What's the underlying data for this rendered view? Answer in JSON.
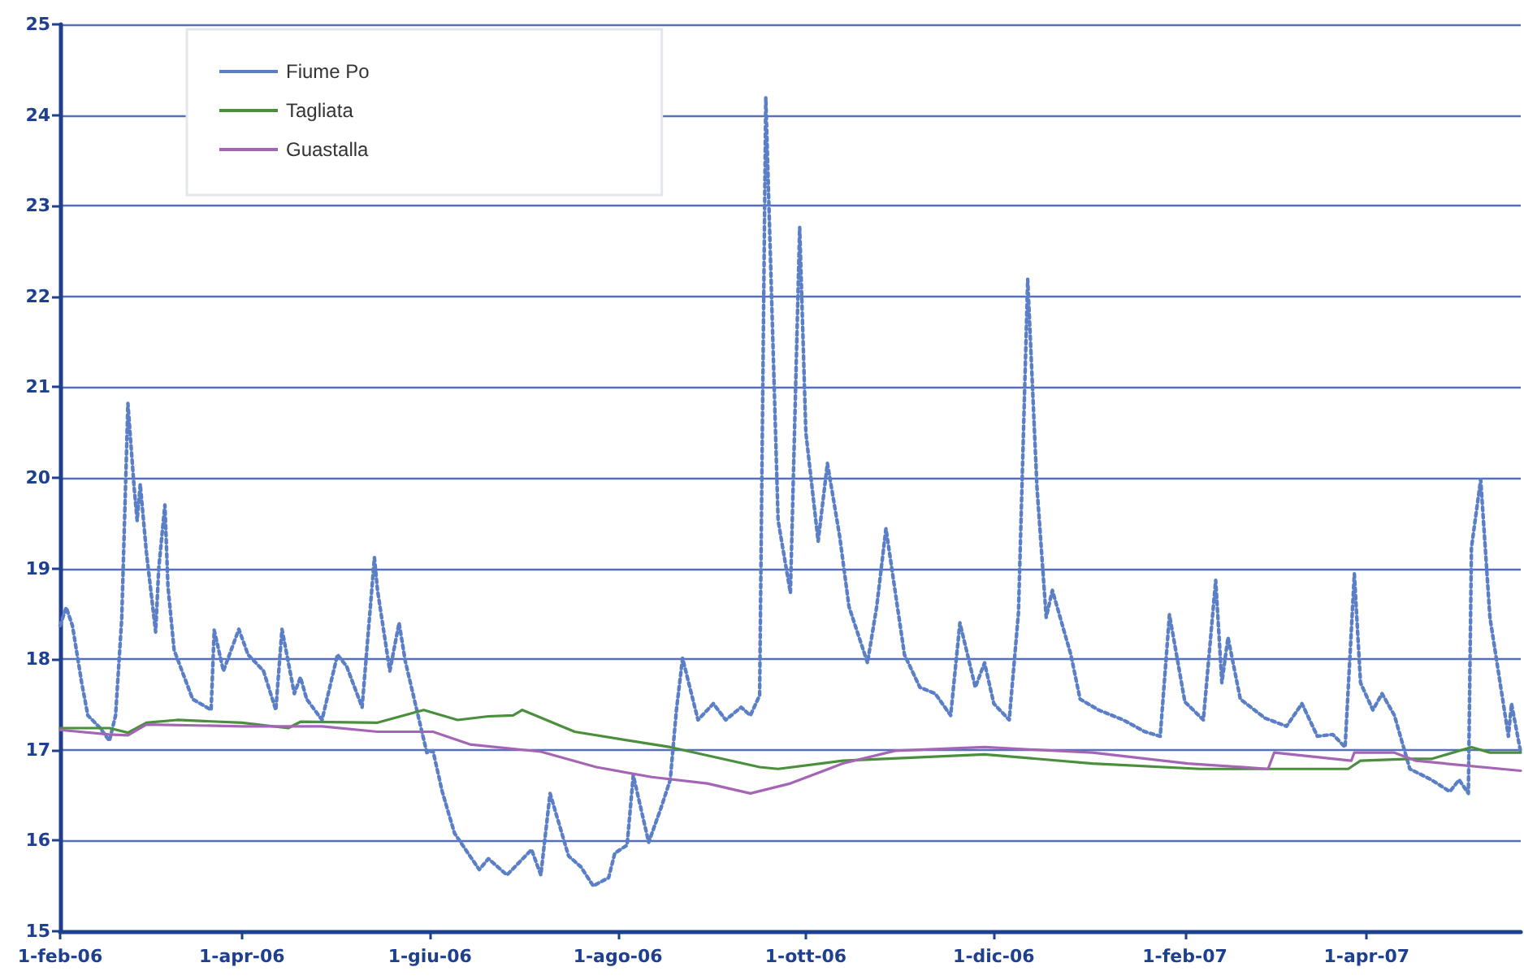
{
  "chart_data": {
    "type": "line",
    "xlim": [
      "2006-02-01",
      "2007-05-21"
    ],
    "ylim": [
      15,
      25
    ],
    "yticks": [
      15,
      16,
      17,
      18,
      19,
      20,
      21,
      22,
      23,
      24,
      25
    ],
    "xticks": [
      {
        "value": "2006-02-01",
        "label": "1-feb-06"
      },
      {
        "value": "2006-04-01",
        "label": "1-apr-06"
      },
      {
        "value": "2006-06-01",
        "label": "1-giu-06"
      },
      {
        "value": "2006-08-01",
        "label": "1-ago-06"
      },
      {
        "value": "2006-10-01",
        "label": "1-ott-06"
      },
      {
        "value": "2006-12-01",
        "label": "1-dic-06"
      },
      {
        "value": "2007-02-01",
        "label": "1-feb-07"
      },
      {
        "value": "2007-04-01",
        "label": "1-apr-07"
      }
    ],
    "grid": "y",
    "legend": "top left",
    "marker": "none",
    "series": [
      {
        "name": "Fiume Po",
        "color": "#5b7fc7",
        "line_style": "dotted",
        "x": [
          "2006-02-01",
          "2006-02-03",
          "2006-02-05",
          "2006-02-08",
          "2006-02-10",
          "2006-02-14",
          "2006-02-17",
          "2006-02-19",
          "2006-02-21",
          "2006-02-23",
          "2006-02-25",
          "2006-02-26",
          "2006-02-27",
          "2006-03-01",
          "2006-03-04",
          "2006-03-05",
          "2006-03-07",
          "2006-03-08",
          "2006-03-10",
          "2006-03-16",
          "2006-03-22",
          "2006-03-23",
          "2006-03-26",
          "2006-03-31",
          "2006-04-03",
          "2006-04-08",
          "2006-04-12",
          "2006-04-14",
          "2006-04-18",
          "2006-04-20",
          "2006-04-22",
          "2006-04-27",
          "2006-05-02",
          "2006-05-05",
          "2006-05-10",
          "2006-05-14",
          "2006-05-15",
          "2006-05-19",
          "2006-05-22",
          "2006-05-24",
          "2006-05-31",
          "2006-06-02",
          "2006-06-05",
          "2006-06-09",
          "2006-06-14",
          "2006-06-17",
          "2006-06-20",
          "2006-06-26",
          "2006-07-04",
          "2006-07-07",
          "2006-07-10",
          "2006-07-16",
          "2006-07-20",
          "2006-07-24",
          "2006-07-29",
          "2006-07-31",
          "2006-08-04",
          "2006-08-06",
          "2006-08-11",
          "2006-08-15",
          "2006-08-18",
          "2006-08-20",
          "2006-08-22",
          "2006-08-27",
          "2006-09-01",
          "2006-09-05",
          "2006-09-10",
          "2006-09-13",
          "2006-09-16",
          "2006-09-18",
          "2006-09-22",
          "2006-09-26",
          "2006-09-29",
          "2006-10-01",
          "2006-10-05",
          "2006-10-08",
          "2006-10-12",
          "2006-10-15",
          "2006-10-21",
          "2006-10-24",
          "2006-10-27",
          "2006-11-02",
          "2006-11-07",
          "2006-11-12",
          "2006-11-17",
          "2006-11-20",
          "2006-11-25",
          "2006-11-28",
          "2006-12-01",
          "2006-12-06",
          "2006-12-09",
          "2006-12-12",
          "2006-12-15",
          "2006-12-18",
          "2006-12-20",
          "2006-12-26",
          "2006-12-29",
          "2007-01-04",
          "2007-01-12",
          "2007-01-19",
          "2007-01-24",
          "2007-01-27",
          "2007-02-01",
          "2007-02-07",
          "2007-02-11",
          "2007-02-13",
          "2007-02-15",
          "2007-02-19",
          "2007-02-27",
          "2007-03-06",
          "2007-03-11",
          "2007-03-16",
          "2007-03-21",
          "2007-03-25",
          "2007-03-28",
          "2007-03-30",
          "2007-04-03",
          "2007-04-06",
          "2007-04-10",
          "2007-04-15",
          "2007-04-22",
          "2007-04-28",
          "2007-05-01",
          "2007-05-04",
          "2007-05-05",
          "2007-05-08",
          "2007-05-11",
          "2007-05-17",
          "2007-05-18",
          "2007-05-21"
        ],
        "values": [
          18.37,
          18.57,
          18.37,
          17.74,
          17.38,
          17.24,
          17.1,
          17.38,
          18.45,
          20.82,
          19.9,
          19.53,
          19.93,
          19.18,
          18.3,
          19.0,
          19.7,
          18.8,
          18.1,
          17.56,
          17.44,
          18.32,
          17.87,
          18.33,
          18.05,
          17.87,
          17.44,
          18.33,
          17.62,
          17.8,
          17.56,
          17.33,
          18.05,
          17.92,
          17.47,
          19.12,
          18.76,
          17.87,
          18.4,
          17.98,
          16.97,
          16.99,
          16.54,
          16.08,
          15.83,
          15.68,
          15.8,
          15.62,
          15.9,
          15.62,
          16.52,
          15.83,
          15.71,
          15.5,
          15.59,
          15.86,
          15.95,
          16.72,
          15.98,
          16.36,
          16.67,
          17.44,
          18.01,
          17.33,
          17.51,
          17.33,
          17.47,
          17.38,
          17.6,
          24.19,
          19.53,
          18.73,
          22.76,
          20.5,
          19.3,
          20.16,
          19.35,
          18.58,
          17.96,
          18.58,
          19.44,
          18.05,
          17.69,
          17.62,
          17.38,
          18.4,
          17.69,
          17.96,
          17.51,
          17.33,
          18.51,
          22.19,
          19.9,
          18.46,
          18.76,
          18.05,
          17.56,
          17.44,
          17.33,
          17.2,
          17.15,
          18.49,
          17.53,
          17.33,
          18.87,
          17.74,
          18.24,
          17.56,
          17.35,
          17.26,
          17.51,
          17.15,
          17.17,
          17.03,
          18.94,
          17.74,
          17.44,
          17.62,
          17.38,
          16.79,
          16.67,
          16.54,
          16.67,
          16.52,
          19.23,
          19.98,
          18.46,
          17.15,
          17.51,
          16.97
        ]
      },
      {
        "name": "Tagliata",
        "color": "#4a8f3c",
        "x": [
          "2006-02-01",
          "2006-02-17",
          "2006-02-23",
          "2006-03-01",
          "2006-03-11",
          "2006-04-01",
          "2006-04-16",
          "2006-04-20",
          "2006-05-15",
          "2006-05-30",
          "2006-06-10",
          "2006-06-20",
          "2006-06-28",
          "2006-07-01",
          "2006-07-18",
          "2006-08-18",
          "2006-09-16",
          "2006-09-22",
          "2006-10-13",
          "2006-11-28",
          "2007-01-02",
          "2007-02-06",
          "2007-02-27",
          "2007-03-02",
          "2007-03-26",
          "2007-03-30",
          "2007-04-15",
          "2007-04-22",
          "2007-05-05",
          "2007-05-11",
          "2007-05-21"
        ],
        "values": [
          17.24,
          17.24,
          17.19,
          17.3,
          17.33,
          17.3,
          17.24,
          17.31,
          17.3,
          17.44,
          17.33,
          17.37,
          17.38,
          17.44,
          17.2,
          17.03,
          16.81,
          16.79,
          16.88,
          16.95,
          16.85,
          16.79,
          16.79,
          16.79,
          16.79,
          16.88,
          16.9,
          16.9,
          17.03,
          16.97,
          16.97
        ]
      },
      {
        "name": "Guastalla",
        "color": "#a565b5",
        "x": [
          "2006-02-01",
          "2006-02-17",
          "2006-02-23",
          "2006-03-01",
          "2006-04-01",
          "2006-04-27",
          "2006-05-15",
          "2006-06-02",
          "2006-06-14",
          "2006-07-07",
          "2006-07-25",
          "2006-08-12",
          "2006-08-30",
          "2006-09-13",
          "2006-09-26",
          "2006-10-13",
          "2006-10-30",
          "2006-11-28",
          "2007-01-02",
          "2007-02-02",
          "2007-02-28",
          "2007-03-02",
          "2007-03-27",
          "2007-03-28",
          "2007-04-10",
          "2007-04-17",
          "2007-05-21"
        ],
        "values": [
          17.22,
          17.17,
          17.16,
          17.28,
          17.26,
          17.26,
          17.2,
          17.2,
          17.06,
          16.98,
          16.81,
          16.7,
          16.63,
          16.52,
          16.63,
          16.85,
          16.99,
          17.03,
          16.97,
          16.85,
          16.79,
          16.97,
          16.88,
          16.97,
          16.97,
          16.88,
          16.77
        ]
      }
    ]
  }
}
